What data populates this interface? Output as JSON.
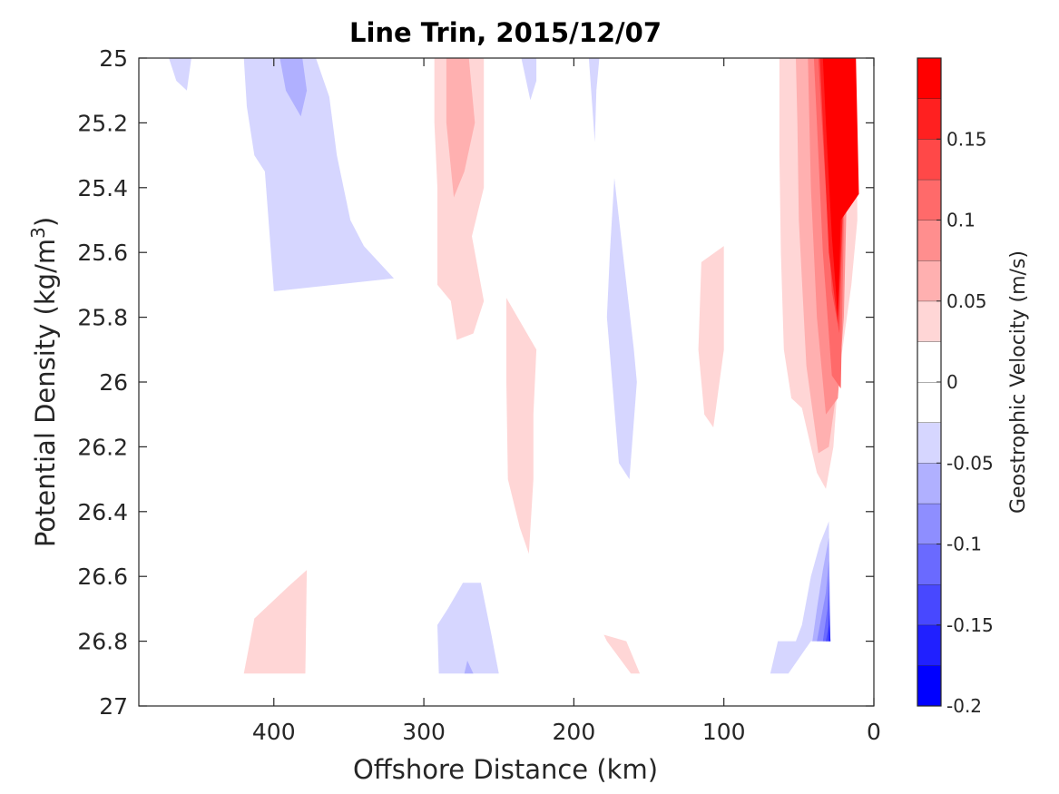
{
  "chart_data": {
    "type": "contour",
    "title": "Line Trin, 2015/12/07",
    "xlabel": "Offshore Distance (km)",
    "ylabel_main": "Potential Density (kg/m",
    "ylabel_sup": "3",
    "ylabel_close": ")",
    "x_reversed": true,
    "xlim": [
      0,
      490
    ],
    "ylim": [
      25,
      27
    ],
    "y_reversed": true,
    "xticks": [
      400,
      300,
      200,
      100,
      0
    ],
    "xtick_labels": [
      "400",
      "300",
      "200",
      "100",
      "0"
    ],
    "yticks": [
      25,
      25.2,
      25.4,
      25.6,
      25.8,
      26,
      26.2,
      26.4,
      26.6,
      26.8,
      27
    ],
    "ytick_labels": [
      "25",
      "25.2",
      "25.4",
      "25.6",
      "25.8",
      "26",
      "26.2",
      "26.4",
      "26.6",
      "26.8",
      "27"
    ],
    "colorbar": {
      "label": "Geostrophic Velocity (m/s)",
      "levels": [
        -0.2,
        -0.175,
        -0.15,
        -0.125,
        -0.1,
        -0.075,
        -0.05,
        -0.025,
        0,
        0.025,
        0.05,
        0.075,
        0.1,
        0.125,
        0.15,
        0.175,
        0.2
      ],
      "ticks": [
        -0.2,
        -0.15,
        -0.1,
        -0.05,
        0,
        0.05,
        0.1,
        0.15
      ],
      "tick_labels": [
        "-0.2",
        "-0.15",
        "-0.1",
        "-0.05",
        "0",
        "0.05",
        "0.1",
        "0.15"
      ],
      "colors": [
        "#0000ff",
        "#2020ff",
        "#4848ff",
        "#6a6aff",
        "#8e8eff",
        "#b0b0ff",
        "#d6d6ff",
        "#ffffff",
        "#ffffff",
        "#ffd6d6",
        "#ffb0b0",
        "#ff8e8e",
        "#ff6a6a",
        "#ff4848",
        "#ff2020",
        "#ff0000"
      ]
    },
    "regions": [
      {
        "sign": "negative",
        "level": 1,
        "points": [
          [
            470,
            25
          ],
          [
            455,
            25
          ],
          [
            458,
            25.1
          ],
          [
            465,
            25.07
          ]
        ]
      },
      {
        "sign": "negative",
        "level": 1,
        "points": [
          [
            420,
            25
          ],
          [
            372,
            25
          ],
          [
            363,
            25.12
          ],
          [
            358,
            25.3
          ],
          [
            349,
            25.5
          ],
          [
            340,
            25.58
          ],
          [
            320,
            25.68
          ],
          [
            400,
            25.72
          ],
          [
            406,
            25.35
          ],
          [
            413,
            25.3
          ],
          [
            418,
            25.15
          ]
        ]
      },
      {
        "sign": "negative",
        "level": 2,
        "points": [
          [
            396,
            25
          ],
          [
            381,
            25
          ],
          [
            378,
            25.1
          ],
          [
            382,
            25.18
          ],
          [
            392,
            25.1
          ]
        ]
      },
      {
        "sign": "positive",
        "level": 1,
        "points": [
          [
            293,
            25
          ],
          [
            260,
            25
          ],
          [
            260,
            25.4
          ],
          [
            268,
            25.55
          ],
          [
            260,
            25.75
          ],
          [
            267,
            25.85
          ],
          [
            278,
            25.87
          ],
          [
            282,
            25.75
          ],
          [
            291,
            25.7
          ],
          [
            291,
            25.4
          ],
          [
            293,
            25.2
          ]
        ]
      },
      {
        "sign": "positive",
        "level": 2,
        "points": [
          [
            285,
            25
          ],
          [
            270,
            25
          ],
          [
            266,
            25.2
          ],
          [
            273,
            25.35
          ],
          [
            280,
            25.43
          ],
          [
            285,
            25.2
          ]
        ]
      },
      {
        "sign": "negative",
        "level": 1,
        "points": [
          [
            235,
            25
          ],
          [
            225,
            25
          ],
          [
            225,
            25.07
          ],
          [
            229,
            25.13
          ]
        ]
      },
      {
        "sign": "negative",
        "level": 1,
        "points": [
          [
            190,
            25
          ],
          [
            183,
            25
          ],
          [
            185,
            25.1
          ],
          [
            186,
            25.26
          ]
        ]
      },
      {
        "sign": "positive",
        "level": 1,
        "points": [
          [
            245,
            25.74
          ],
          [
            225,
            25.9
          ],
          [
            227,
            26.1
          ],
          [
            227,
            26.3
          ],
          [
            230,
            26.53
          ],
          [
            236,
            26.45
          ],
          [
            244,
            26.3
          ],
          [
            245,
            26.0
          ]
        ]
      },
      {
        "sign": "negative",
        "level": 1,
        "points": [
          [
            173,
            25.37
          ],
          [
            160,
            25.9
          ],
          [
            158,
            26.0
          ],
          [
            163,
            26.3
          ],
          [
            170,
            26.25
          ],
          [
            178,
            25.8
          ],
          [
            176,
            25.6
          ]
        ]
      },
      {
        "sign": "positive",
        "level": 1,
        "points": [
          [
            115,
            25.63
          ],
          [
            100,
            25.58
          ],
          [
            100,
            25.9
          ],
          [
            107,
            26.14
          ],
          [
            113,
            26.1
          ],
          [
            117,
            25.9
          ]
        ]
      },
      {
        "sign": "positive",
        "level": 1,
        "points": [
          [
            63,
            25
          ],
          [
            12,
            25
          ],
          [
            11,
            25.5
          ],
          [
            15,
            25.7
          ],
          [
            24,
            26.0
          ],
          [
            27,
            26.2
          ],
          [
            32,
            26.33
          ],
          [
            38,
            26.28
          ],
          [
            48,
            26.08
          ],
          [
            55,
            26.05
          ],
          [
            60,
            25.9
          ],
          [
            62,
            25.6
          ],
          [
            63,
            25.3
          ]
        ]
      },
      {
        "sign": "positive",
        "level": 2,
        "points": [
          [
            52,
            25
          ],
          [
            14,
            25
          ],
          [
            14,
            25.3
          ],
          [
            20,
            25.5
          ],
          [
            24,
            26.0
          ],
          [
            30,
            26.2
          ],
          [
            37,
            26.22
          ],
          [
            45,
            25.95
          ],
          [
            50,
            25.5
          ],
          [
            51,
            25.2
          ]
        ]
      },
      {
        "sign": "positive",
        "level": 3,
        "points": [
          [
            44,
            25
          ],
          [
            16,
            25
          ],
          [
            20,
            25.8
          ],
          [
            24,
            26.05
          ],
          [
            32,
            26.1
          ],
          [
            38,
            25.8
          ],
          [
            42,
            25.4
          ]
        ]
      },
      {
        "sign": "positive",
        "level": 4,
        "points": [
          [
            40,
            25
          ],
          [
            17,
            25
          ],
          [
            20,
            25.5
          ],
          [
            22,
            26.02
          ],
          [
            28,
            25.98
          ],
          [
            34,
            25.6
          ],
          [
            38,
            25.2
          ]
        ]
      },
      {
        "sign": "positive",
        "level": 5,
        "points": [
          [
            37,
            25
          ],
          [
            18,
            25
          ],
          [
            20,
            25.4
          ],
          [
            23,
            25.85
          ],
          [
            28,
            25.72
          ],
          [
            34,
            25.25
          ]
        ]
      },
      {
        "sign": "positive",
        "level": 6,
        "points": [
          [
            36,
            25
          ],
          [
            18,
            25
          ],
          [
            20,
            25.4
          ],
          [
            24,
            25.82
          ],
          [
            30,
            25.6
          ],
          [
            34,
            25.2
          ]
        ]
      },
      {
        "sign": "positive",
        "level": 7,
        "points": [
          [
            34,
            25
          ],
          [
            12,
            25
          ],
          [
            10,
            25.42
          ],
          [
            22,
            25.5
          ],
          [
            24,
            25.8
          ],
          [
            28,
            25.55
          ],
          [
            32,
            25.2
          ]
        ]
      },
      {
        "sign": "negative",
        "level": 1,
        "points": [
          [
            30,
            26.43
          ],
          [
            36,
            26.5
          ],
          [
            42,
            26.6
          ],
          [
            48,
            26.75
          ],
          [
            52,
            26.8
          ],
          [
            64,
            26.8
          ],
          [
            69,
            26.9
          ],
          [
            57,
            26.9
          ],
          [
            42,
            26.8
          ],
          [
            29,
            26.8
          ]
        ]
      },
      {
        "sign": "negative",
        "level": 2,
        "points": [
          [
            30,
            26.48
          ],
          [
            34,
            26.58
          ],
          [
            38,
            26.7
          ],
          [
            41,
            26.8
          ],
          [
            29,
            26.8
          ]
        ]
      },
      {
        "sign": "negative",
        "level": 3,
        "points": [
          [
            30,
            26.55
          ],
          [
            32,
            26.65
          ],
          [
            36,
            26.75
          ],
          [
            38,
            26.8
          ],
          [
            29,
            26.8
          ]
        ]
      },
      {
        "sign": "negative",
        "level": 4,
        "points": [
          [
            30,
            26.6
          ],
          [
            31,
            26.7
          ],
          [
            34,
            26.8
          ],
          [
            29,
            26.8
          ]
        ]
      },
      {
        "sign": "negative",
        "level": 5,
        "points": [
          [
            30,
            26.66
          ],
          [
            30,
            26.75
          ],
          [
            32,
            26.8
          ],
          [
            29,
            26.8
          ]
        ]
      },
      {
        "sign": "negative",
        "level": 6,
        "points": [
          [
            30,
            26.72
          ],
          [
            30,
            26.8
          ],
          [
            29,
            26.8
          ]
        ]
      },
      {
        "sign": "positive",
        "level": 1,
        "points": [
          [
            413,
            26.73
          ],
          [
            420,
            26.9
          ],
          [
            379,
            26.9
          ],
          [
            378,
            26.58
          ],
          [
            390,
            26.63
          ]
        ]
      },
      {
        "sign": "negative",
        "level": 1,
        "points": [
          [
            274,
            26.62
          ],
          [
            262,
            26.62
          ],
          [
            255,
            26.78
          ],
          [
            250,
            26.9
          ],
          [
            290,
            26.9
          ],
          [
            291,
            26.75
          ],
          [
            284,
            26.7
          ]
        ]
      },
      {
        "sign": "negative",
        "level": 2,
        "points": [
          [
            271,
            26.86
          ],
          [
            267,
            26.9
          ],
          [
            273,
            26.9
          ]
        ]
      },
      {
        "sign": "positive",
        "level": 1,
        "points": [
          [
            180,
            26.78
          ],
          [
            165,
            26.8
          ],
          [
            156,
            26.9
          ],
          [
            162,
            26.9
          ],
          [
            178,
            26.8
          ]
        ]
      }
    ]
  }
}
